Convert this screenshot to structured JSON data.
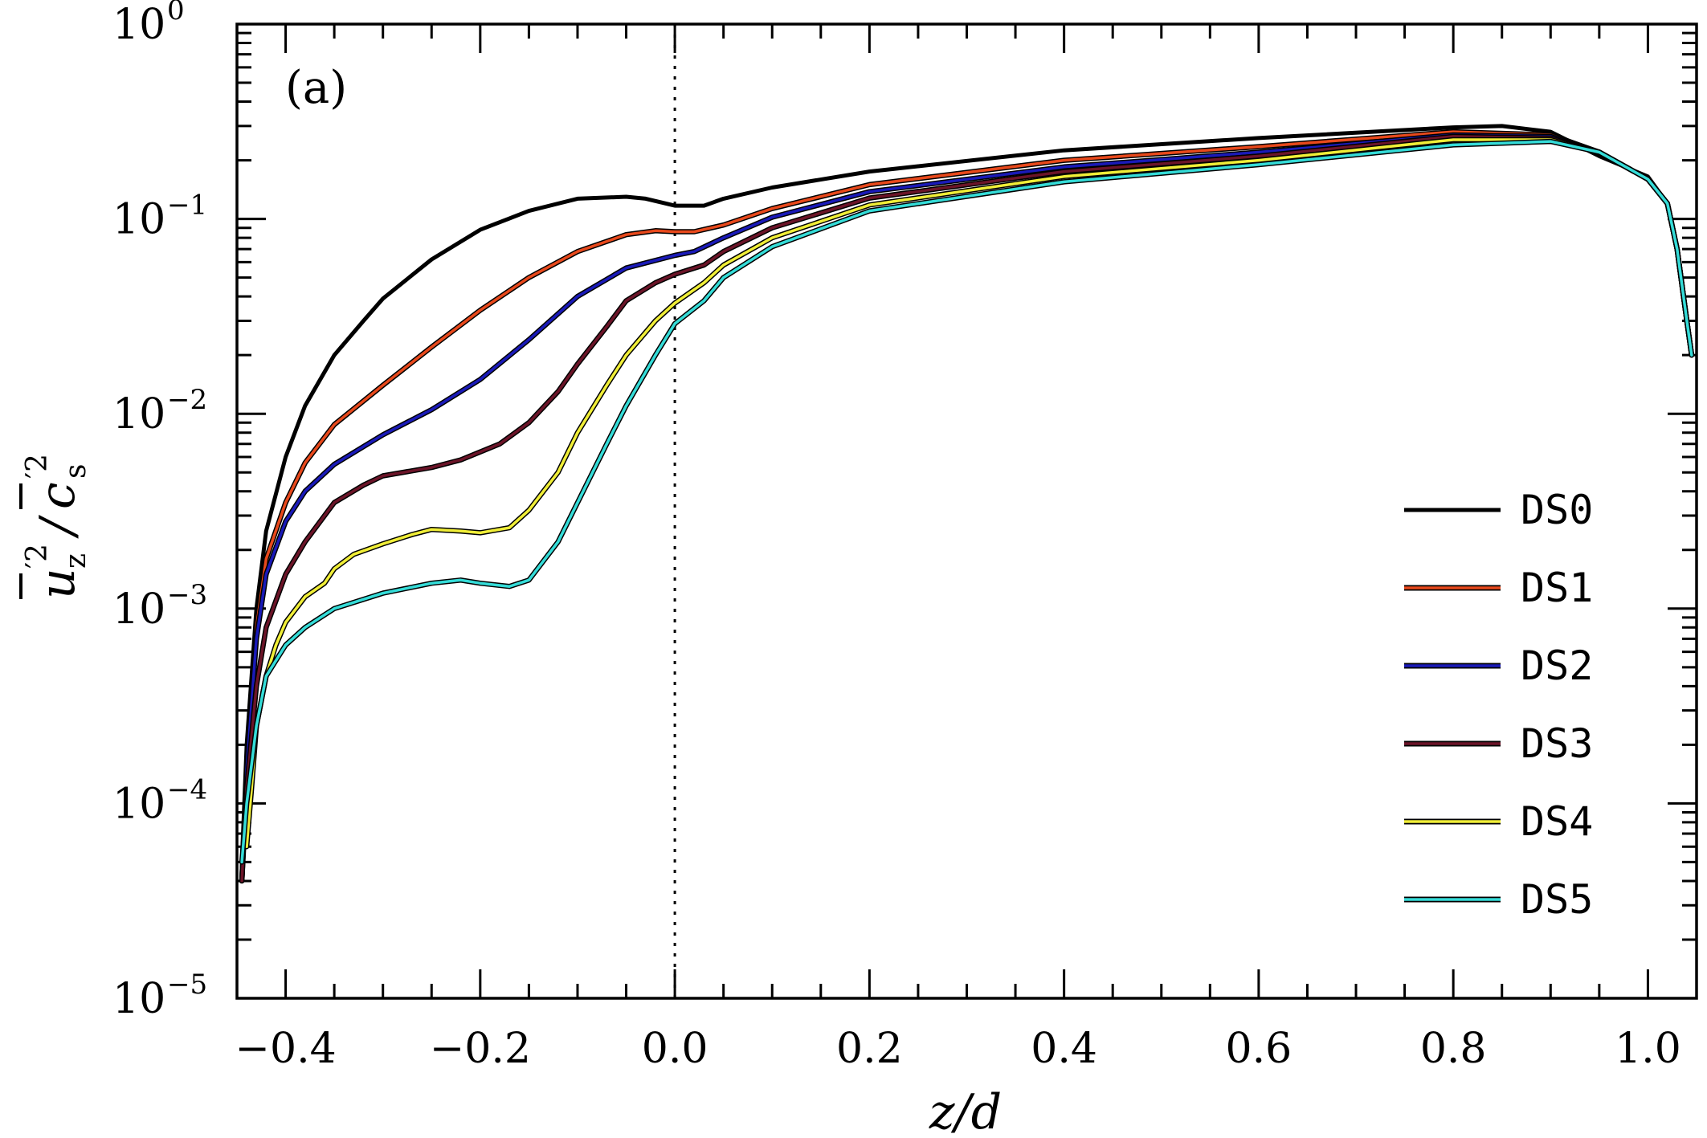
{
  "chart_data": {
    "type": "line",
    "panel_label": "(a)",
    "xlabel": "z/d",
    "ylabel": "u'z^2 / c's^2",
    "ylabel_parts": {
      "u": "u",
      "sub_z": "z",
      "slash": "/",
      "c": "c",
      "sub_s": "s",
      "prime2": "′2"
    },
    "xlim": [
      -0.45,
      1.05
    ],
    "ylim_log10": [
      -5,
      0
    ],
    "yscale": "log",
    "xticks": [
      -0.4,
      -0.2,
      0.0,
      0.2,
      0.4,
      0.6,
      0.8,
      1.0
    ],
    "xtick_labels": [
      "−0.4",
      "−0.2",
      "0.0",
      "0.2",
      "0.4",
      "0.6",
      "0.8",
      "1.0"
    ],
    "yticks_exp": [
      0,
      -1,
      -2,
      -3,
      -4,
      -5
    ],
    "ytick_labels": [
      {
        "base": "10",
        "exp": "0"
      },
      {
        "base": "10",
        "exp": "−1"
      },
      {
        "base": "10",
        "exp": "−2"
      },
      {
        "base": "10",
        "exp": "−3"
      },
      {
        "base": "10",
        "exp": "−4"
      },
      {
        "base": "10",
        "exp": "−5"
      }
    ],
    "reference_line_x": 0.0,
    "legend_position": "center-right",
    "series": [
      {
        "name": "DS0",
        "color": "#000000",
        "x": [
          -0.445,
          -0.44,
          -0.43,
          -0.42,
          -0.4,
          -0.38,
          -0.35,
          -0.32,
          -0.3,
          -0.25,
          -0.2,
          -0.15,
          -0.1,
          -0.05,
          -0.03,
          0.0,
          0.03,
          0.05,
          0.1,
          0.2,
          0.4,
          0.6,
          0.8,
          0.85,
          0.9,
          0.95,
          1.0,
          1.02,
          1.03,
          1.04,
          1.045
        ],
        "y": [
          5e-05,
          0.0002,
          0.001,
          0.0025,
          0.006,
          0.011,
          0.02,
          0.03,
          0.039,
          0.062,
          0.088,
          0.11,
          0.127,
          0.13,
          0.127,
          0.117,
          0.117,
          0.127,
          0.145,
          0.175,
          0.225,
          0.26,
          0.295,
          0.3,
          0.28,
          0.21,
          0.165,
          0.12,
          0.07,
          0.03,
          0.02
        ]
      },
      {
        "name": "DS1",
        "color": "#e8491c",
        "x": [
          -0.445,
          -0.44,
          -0.43,
          -0.42,
          -0.4,
          -0.38,
          -0.35,
          -0.3,
          -0.25,
          -0.2,
          -0.15,
          -0.1,
          -0.05,
          -0.02,
          0.0,
          0.02,
          0.05,
          0.1,
          0.2,
          0.4,
          0.6,
          0.8,
          0.9,
          0.95,
          1.0,
          1.02,
          1.03,
          1.04,
          1.045
        ],
        "y": [
          4e-05,
          0.00015,
          0.0008,
          0.0018,
          0.0035,
          0.0056,
          0.0088,
          0.014,
          0.022,
          0.034,
          0.05,
          0.068,
          0.083,
          0.087,
          0.086,
          0.086,
          0.093,
          0.113,
          0.15,
          0.2,
          0.235,
          0.28,
          0.27,
          0.22,
          0.16,
          0.12,
          0.07,
          0.03,
          0.02
        ]
      },
      {
        "name": "DS2",
        "color": "#1a1ab8",
        "x": [
          -0.445,
          -0.44,
          -0.43,
          -0.42,
          -0.4,
          -0.38,
          -0.35,
          -0.3,
          -0.25,
          -0.2,
          -0.15,
          -0.1,
          -0.05,
          0.0,
          0.02,
          0.05,
          0.1,
          0.2,
          0.4,
          0.6,
          0.8,
          0.9,
          0.95,
          1.0,
          1.02,
          1.03,
          1.04,
          1.045
        ],
        "y": [
          4e-05,
          0.00015,
          0.0007,
          0.0015,
          0.0028,
          0.004,
          0.0055,
          0.0078,
          0.0105,
          0.015,
          0.024,
          0.04,
          0.056,
          0.065,
          0.068,
          0.08,
          0.102,
          0.138,
          0.185,
          0.22,
          0.27,
          0.265,
          0.22,
          0.16,
          0.12,
          0.07,
          0.03,
          0.02
        ]
      },
      {
        "name": "DS3",
        "color": "#6b1428",
        "x": [
          -0.445,
          -0.44,
          -0.43,
          -0.42,
          -0.4,
          -0.38,
          -0.35,
          -0.32,
          -0.3,
          -0.25,
          -0.22,
          -0.18,
          -0.15,
          -0.12,
          -0.1,
          -0.07,
          -0.05,
          -0.02,
          0.0,
          0.03,
          0.05,
          0.1,
          0.2,
          0.4,
          0.6,
          0.8,
          0.9,
          0.95,
          1.0,
          1.02,
          1.03,
          1.04,
          1.045
        ],
        "y": [
          4e-05,
          0.00012,
          0.0004,
          0.0008,
          0.0015,
          0.0022,
          0.0035,
          0.0043,
          0.0048,
          0.0053,
          0.0058,
          0.007,
          0.009,
          0.013,
          0.018,
          0.028,
          0.038,
          0.047,
          0.052,
          0.058,
          0.068,
          0.09,
          0.128,
          0.175,
          0.21,
          0.265,
          0.26,
          0.22,
          0.16,
          0.12,
          0.07,
          0.03,
          0.02
        ]
      },
      {
        "name": "DS4",
        "color": "#f0ee38",
        "x": [
          -0.44,
          -0.435,
          -0.43,
          -0.42,
          -0.41,
          -0.4,
          -0.38,
          -0.36,
          -0.35,
          -0.33,
          -0.3,
          -0.27,
          -0.25,
          -0.22,
          -0.2,
          -0.17,
          -0.15,
          -0.12,
          -0.1,
          -0.07,
          -0.05,
          -0.02,
          0.0,
          0.03,
          0.05,
          0.1,
          0.2,
          0.4,
          0.6,
          0.8,
          0.9,
          0.95,
          1.0,
          1.02,
          1.03,
          1.04,
          1.045
        ],
        "y": [
          6e-05,
          0.00012,
          0.00025,
          0.00045,
          0.00065,
          0.00085,
          0.00115,
          0.00135,
          0.0016,
          0.0019,
          0.00215,
          0.0024,
          0.00255,
          0.0025,
          0.00245,
          0.0026,
          0.0032,
          0.005,
          0.008,
          0.014,
          0.02,
          0.03,
          0.037,
          0.047,
          0.058,
          0.08,
          0.118,
          0.165,
          0.2,
          0.255,
          0.255,
          0.22,
          0.16,
          0.12,
          0.07,
          0.03,
          0.02
        ]
      },
      {
        "name": "DS5",
        "color": "#35dcd8",
        "x": [
          -0.445,
          -0.44,
          -0.43,
          -0.42,
          -0.4,
          -0.38,
          -0.35,
          -0.3,
          -0.25,
          -0.22,
          -0.2,
          -0.17,
          -0.15,
          -0.12,
          -0.1,
          -0.07,
          -0.05,
          -0.02,
          0.0,
          0.03,
          0.05,
          0.1,
          0.2,
          0.4,
          0.6,
          0.8,
          0.9,
          0.95,
          1.0,
          1.02,
          1.03,
          1.04,
          1.045
        ],
        "y": [
          5e-05,
          0.0001,
          0.00025,
          0.00045,
          0.00065,
          0.0008,
          0.001,
          0.0012,
          0.00135,
          0.0014,
          0.00135,
          0.0013,
          0.0014,
          0.0022,
          0.0035,
          0.007,
          0.011,
          0.02,
          0.029,
          0.038,
          0.05,
          0.072,
          0.11,
          0.155,
          0.19,
          0.24,
          0.25,
          0.22,
          0.16,
          0.12,
          0.07,
          0.03,
          0.02
        ]
      }
    ]
  }
}
